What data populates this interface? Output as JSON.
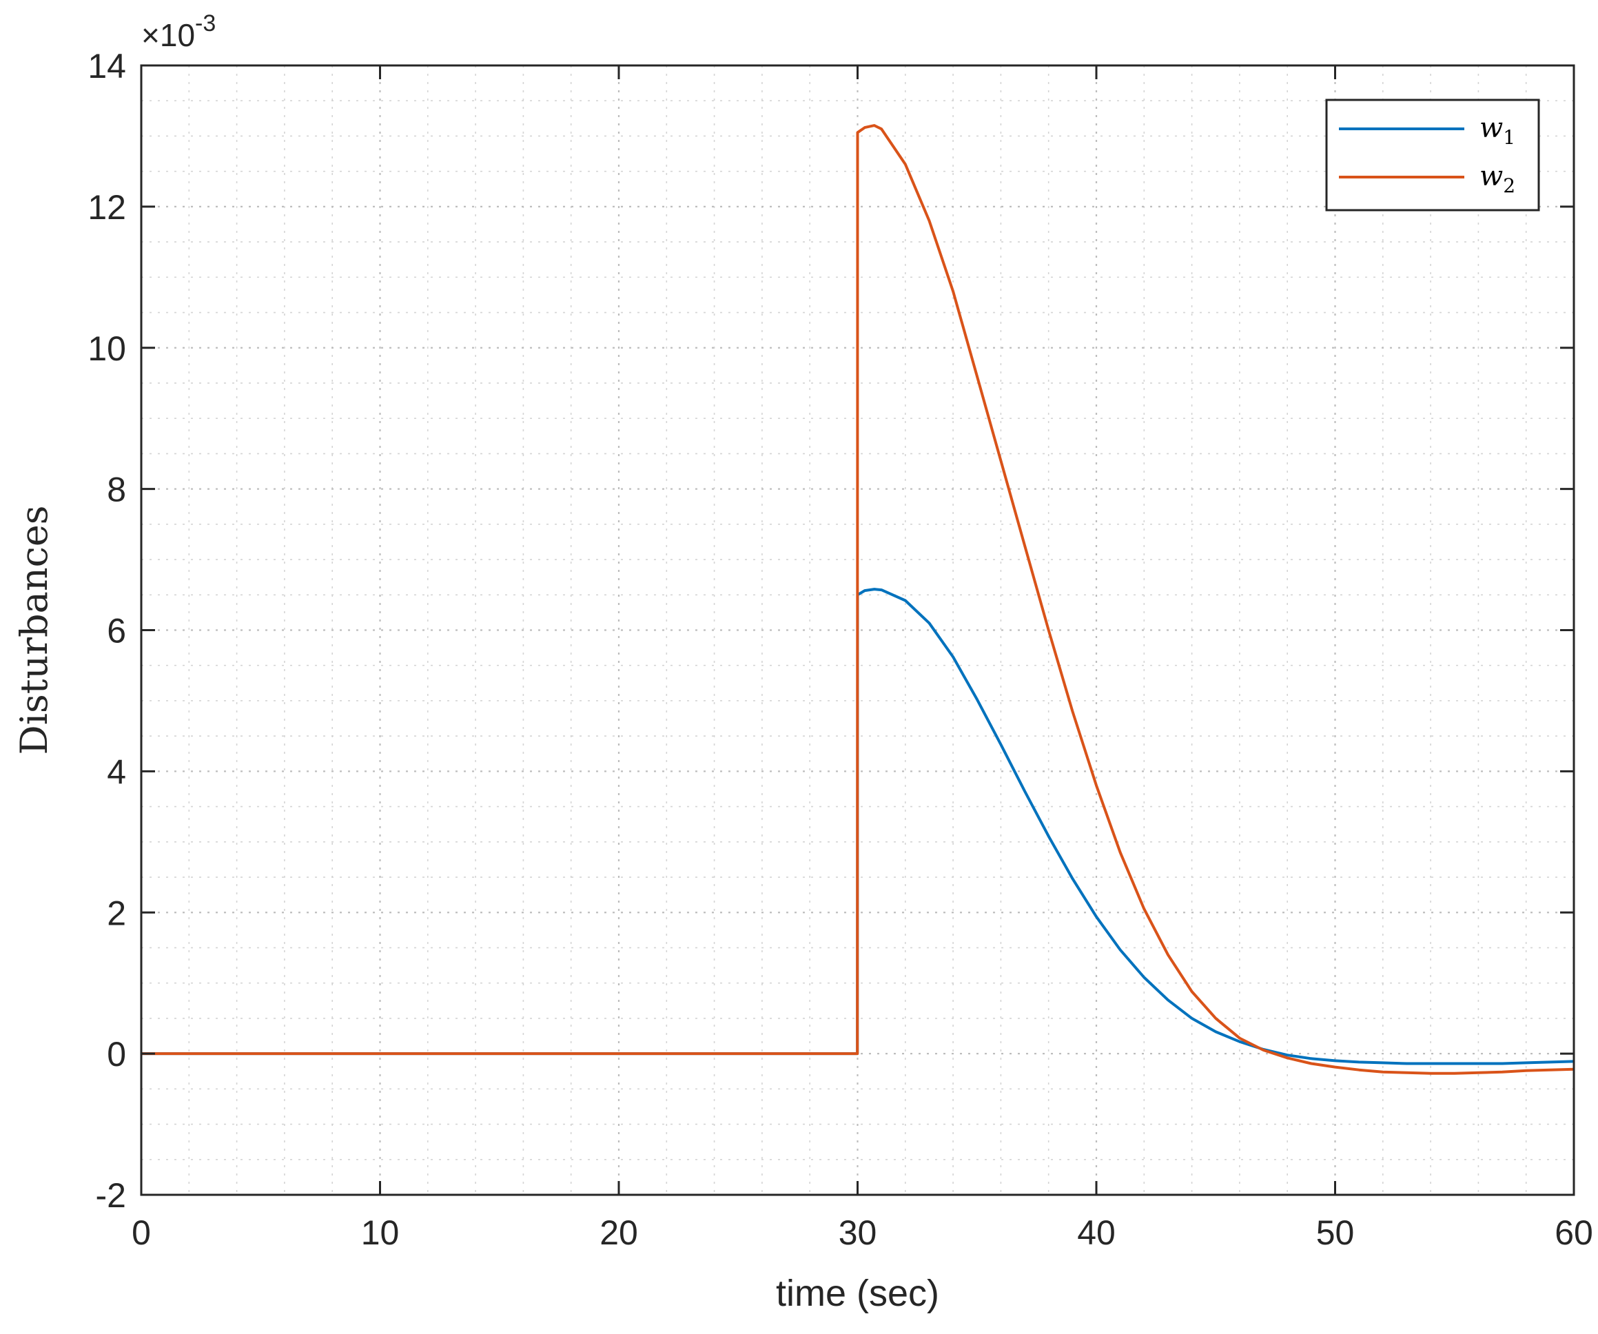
{
  "chart_data": {
    "type": "line",
    "xlabel": "time (sec)",
    "ylabel": "Disturbances",
    "y_exponent_label": "×10",
    "y_exponent_power": "-3",
    "xlim": [
      0,
      60
    ],
    "ylim": [
      -2,
      14
    ],
    "x_ticks": [
      "0",
      "10",
      "20",
      "30",
      "40",
      "50",
      "60"
    ],
    "y_ticks": [
      "-2",
      "0",
      "2",
      "4",
      "6",
      "8",
      "10",
      "12",
      "14"
    ],
    "grid": true,
    "minor_grid": true,
    "legend_position": "top-right",
    "series": [
      {
        "name": "w",
        "subscript": "1",
        "color": "#0072BD",
        "x": [
          0,
          29.99,
          30.0,
          30.3,
          30.7,
          31,
          32,
          33,
          34,
          35,
          36,
          37,
          38,
          39,
          40,
          41,
          42,
          43,
          44,
          45,
          46,
          47,
          48,
          49,
          50,
          51,
          52,
          53,
          54,
          55,
          56,
          57,
          58,
          59,
          60
        ],
        "values": [
          0,
          0,
          6.5,
          6.56,
          6.58,
          6.57,
          6.42,
          6.1,
          5.62,
          5.02,
          4.38,
          3.72,
          3.08,
          2.48,
          1.94,
          1.47,
          1.08,
          0.76,
          0.5,
          0.31,
          0.17,
          0.06,
          -0.02,
          -0.07,
          -0.1,
          -0.12,
          -0.13,
          -0.14,
          -0.14,
          -0.14,
          -0.14,
          -0.14,
          -0.13,
          -0.12,
          -0.11
        ]
      },
      {
        "name": "w",
        "subscript": "2",
        "color": "#D95319",
        "x": [
          0,
          29.99,
          30.0,
          30.3,
          30.7,
          31,
          32,
          33,
          34,
          35,
          36,
          37,
          38,
          39,
          40,
          41,
          42,
          43,
          44,
          45,
          46,
          47,
          48,
          49,
          50,
          51,
          52,
          53,
          54,
          55,
          56,
          57,
          58,
          59,
          60
        ],
        "values": [
          0,
          0,
          13.05,
          13.12,
          13.15,
          13.1,
          12.6,
          11.8,
          10.8,
          9.6,
          8.4,
          7.2,
          6.0,
          4.85,
          3.8,
          2.85,
          2.05,
          1.4,
          0.88,
          0.5,
          0.22,
          0.05,
          -0.06,
          -0.14,
          -0.19,
          -0.23,
          -0.26,
          -0.27,
          -0.28,
          -0.28,
          -0.27,
          -0.26,
          -0.24,
          -0.23,
          -0.22
        ]
      }
    ]
  }
}
